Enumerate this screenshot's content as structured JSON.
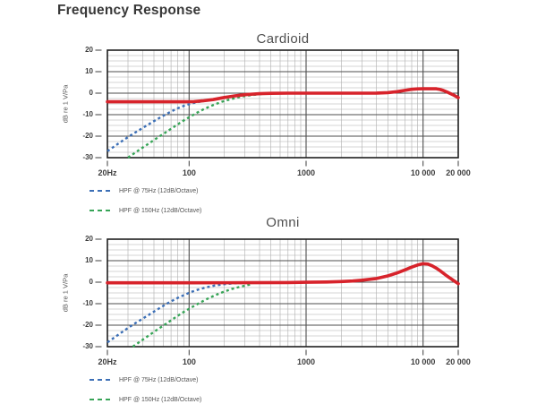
{
  "page": {
    "title": "Frequency Response"
  },
  "colors": {
    "red": "#d7232b",
    "blue": "#3c6fb6",
    "green": "#37a457",
    "grid_major": "#4d4d4d",
    "grid_minor": "#aeaeae",
    "border": "#1e1e1e",
    "tick_text": "#3d3d3d",
    "title_text": "#383838",
    "chart_title_text": "#4f4f4f",
    "legend_text": "#555555",
    "background": "#ffffff"
  },
  "axes": {
    "x": {
      "scale": "log",
      "min_hz": 20,
      "max_hz": 20000,
      "tick_labels": [
        {
          "hz": 20,
          "label": "20Hz"
        },
        {
          "hz": 100,
          "label": "100"
        },
        {
          "hz": 1000,
          "label": "1000"
        },
        {
          "hz": 10000,
          "label": "10 000"
        },
        {
          "hz": 20000,
          "label": "20 000"
        }
      ],
      "minor_gridlines_hz": [
        30,
        40,
        50,
        60,
        70,
        80,
        90,
        200,
        300,
        400,
        500,
        600,
        700,
        800,
        900,
        2000,
        3000,
        4000,
        5000,
        6000,
        7000,
        8000,
        9000
      ],
      "major_gridlines_hz": [
        100,
        1000,
        10000
      ]
    },
    "y": {
      "min_db": -30,
      "max_db": 20,
      "minor_step_db": 2.5,
      "major_step_db": 10,
      "tick_labels": [
        20,
        10,
        0,
        -10,
        -20,
        -30
      ],
      "axis_label": "dB re 1 V/Pa"
    }
  },
  "chart_data": [
    {
      "type": "line",
      "title": "Cardioid",
      "x_unit": "Hz",
      "y_unit": "dB re 1 V/Pa",
      "xlim": [
        20,
        20000
      ],
      "ylim": [
        -30,
        20
      ],
      "grid": true,
      "legend_position": "below-left",
      "legend": [
        {
          "label": "HPF @ 75Hz (12dB/Octave)",
          "color_key": "blue"
        },
        {
          "label": "HPF @ 150Hz (12dB/Octave)",
          "color_key": "green"
        }
      ],
      "series": [
        {
          "name": "HPF @ 75Hz (12dB/Octave)",
          "style": "dashed",
          "color_key": "blue",
          "points": [
            [
              20,
              -27
            ],
            [
              24,
              -24
            ],
            [
              28,
              -21.5
            ],
            [
              33,
              -19
            ],
            [
              40,
              -16.2
            ],
            [
              48,
              -13.6
            ],
            [
              57,
              -11.2
            ],
            [
              68,
              -8.9
            ],
            [
              80,
              -7
            ],
            [
              92,
              -5.7
            ],
            [
              105,
              -4.8
            ],
            [
              120,
              -4.1
            ],
            [
              140,
              -3.5
            ],
            [
              170,
              -2.7
            ],
            [
              200,
              -2
            ],
            [
              240,
              -1.3
            ],
            [
              290,
              -0.8
            ],
            [
              350,
              -0.4
            ],
            [
              420,
              -0.15
            ]
          ]
        },
        {
          "name": "HPF @ 150Hz (12dB/Octave)",
          "style": "dashed",
          "color_key": "green",
          "points": [
            [
              30,
              -30
            ],
            [
              36,
              -27
            ],
            [
              43,
              -24.2
            ],
            [
              52,
              -21.2
            ],
            [
              62,
              -18.5
            ],
            [
              74,
              -15.7
            ],
            [
              88,
              -13
            ],
            [
              100,
              -11.2
            ],
            [
              115,
              -9.3
            ],
            [
              135,
              -7.3
            ],
            [
              160,
              -5.6
            ],
            [
              190,
              -4
            ],
            [
              230,
              -2.7
            ],
            [
              280,
              -1.6
            ],
            [
              340,
              -0.9
            ],
            [
              420,
              -0.4
            ],
            [
              500,
              -0.15
            ]
          ]
        },
        {
          "name": "Frequency response",
          "style": "solid",
          "color_key": "red",
          "points": [
            [
              20,
              -4
            ],
            [
              30,
              -4
            ],
            [
              50,
              -4
            ],
            [
              70,
              -4
            ],
            [
              90,
              -4
            ],
            [
              110,
              -3.9
            ],
            [
              130,
              -3.6
            ],
            [
              160,
              -3
            ],
            [
              200,
              -2
            ],
            [
              250,
              -1.2
            ],
            [
              300,
              -0.7
            ],
            [
              400,
              -0.25
            ],
            [
              500,
              -0.1
            ],
            [
              700,
              0
            ],
            [
              1000,
              0
            ],
            [
              1500,
              0
            ],
            [
              2000,
              0
            ],
            [
              3000,
              0
            ],
            [
              4000,
              0.05
            ],
            [
              5000,
              0.25
            ],
            [
              6000,
              0.7
            ],
            [
              7000,
              1.3
            ],
            [
              8000,
              1.8
            ],
            [
              9000,
              2
            ],
            [
              10000,
              2.05
            ],
            [
              11000,
              2.05
            ],
            [
              12000,
              2.1
            ],
            [
              13000,
              2.05
            ],
            [
              14000,
              1.7
            ],
            [
              15000,
              1.2
            ],
            [
              16000,
              0.6
            ],
            [
              18000,
              -0.7
            ],
            [
              20000,
              -2.1
            ]
          ]
        }
      ]
    },
    {
      "type": "line",
      "title": "Omni",
      "x_unit": "Hz",
      "y_unit": "dB re 1 V/Pa",
      "xlim": [
        20,
        20000
      ],
      "ylim": [
        -30,
        20
      ],
      "grid": true,
      "legend_position": "below-left",
      "legend": [
        {
          "label": "HPF @ 75Hz (12dB/Octave)",
          "color_key": "blue"
        },
        {
          "label": "HPF @ 150Hz (12dB/Octave)",
          "color_key": "green"
        }
      ],
      "series": [
        {
          "name": "HPF @ 75Hz (12dB/Octave)",
          "style": "dashed",
          "color_key": "blue",
          "points": [
            [
              20,
              -28
            ],
            [
              24,
              -25
            ],
            [
              28,
              -22.4
            ],
            [
              33,
              -19.8
            ],
            [
              40,
              -17
            ],
            [
              48,
              -14.3
            ],
            [
              57,
              -11.8
            ],
            [
              68,
              -9.3
            ],
            [
              80,
              -7.3
            ],
            [
              92,
              -5.8
            ],
            [
              105,
              -4.5
            ],
            [
              120,
              -3.4
            ],
            [
              140,
              -2.4
            ],
            [
              165,
              -1.6
            ],
            [
              200,
              -0.9
            ],
            [
              240,
              -0.55
            ],
            [
              280,
              -0.4
            ]
          ]
        },
        {
          "name": "HPF @ 150Hz (12dB/Octave)",
          "style": "dashed",
          "color_key": "green",
          "points": [
            [
              33,
              -30
            ],
            [
              39,
              -27.2
            ],
            [
              46,
              -24.5
            ],
            [
              55,
              -21.6
            ],
            [
              65,
              -19
            ],
            [
              78,
              -16
            ],
            [
              92,
              -13.5
            ],
            [
              105,
              -11.7
            ],
            [
              120,
              -9.9
            ],
            [
              140,
              -8
            ],
            [
              165,
              -6.2
            ],
            [
              195,
              -4.6
            ],
            [
              230,
              -3.2
            ],
            [
              270,
              -2.2
            ],
            [
              320,
              -1.3
            ],
            [
              350,
              -1
            ]
          ]
        },
        {
          "name": "Frequency response",
          "style": "solid",
          "color_key": "red",
          "points": [
            [
              20,
              -0.3
            ],
            [
              50,
              -0.3
            ],
            [
              100,
              -0.3
            ],
            [
              300,
              -0.25
            ],
            [
              700,
              -0.15
            ],
            [
              1000,
              -0.05
            ],
            [
              1500,
              0.1
            ],
            [
              2000,
              0.3
            ],
            [
              2500,
              0.55
            ],
            [
              3000,
              0.9
            ],
            [
              4000,
              1.7
            ],
            [
              5000,
              2.9
            ],
            [
              6000,
              4.3
            ],
            [
              7000,
              5.7
            ],
            [
              8000,
              7
            ],
            [
              9000,
              8
            ],
            [
              10000,
              8.6
            ],
            [
              11000,
              8.4
            ],
            [
              12000,
              7.6
            ],
            [
              13000,
              6.5
            ],
            [
              14000,
              5.3
            ],
            [
              16000,
              2.9
            ],
            [
              18000,
              1
            ],
            [
              20000,
              -0.7
            ]
          ]
        }
      ]
    }
  ]
}
